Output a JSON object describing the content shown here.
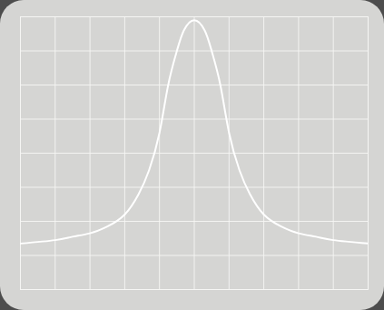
{
  "chart_data": {
    "type": "line",
    "x": [
      -5,
      -4,
      -3.5,
      -3,
      -2.5,
      -2,
      -1.6,
      -1.3,
      -1,
      -0.75,
      -0.5,
      -0.3,
      0,
      0.3,
      0.5,
      0.75,
      1,
      1.3,
      1.6,
      2,
      2.5,
      3,
      3.5,
      4,
      5
    ],
    "values": [
      -2.65,
      -2.55,
      -2.45,
      -2.35,
      -2.15,
      -1.8,
      -1.2,
      -0.5,
      0.6,
      2.0,
      3.0,
      3.6,
      3.9,
      3.6,
      3.0,
      2.0,
      0.6,
      -0.5,
      -1.2,
      -1.8,
      -2.15,
      -2.35,
      -2.45,
      -2.55,
      -2.65
    ],
    "color": "#ffffff",
    "xlim": [
      -5,
      5
    ],
    "ylim": [
      -4,
      4
    ],
    "xticks": [
      -5,
      -4,
      -3,
      -2,
      -1,
      0,
      1,
      2,
      3,
      4,
      5
    ],
    "yticks": [
      -4,
      -3,
      -2,
      -1,
      0,
      1,
      2,
      3,
      4
    ],
    "grid": true,
    "tick_labels": false
  }
}
